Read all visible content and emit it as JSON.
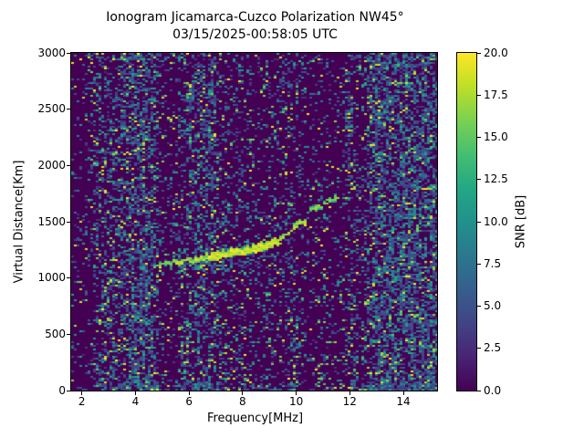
{
  "title": {
    "line1": "Ionogram Jicamarca-Cuzco Polarization NW45°",
    "line2": "03/15/2025-00:58:05 UTC"
  },
  "axes": {
    "xlabel": "Frequency[MHz]",
    "ylabel": "Virtual Distance[Km]",
    "xlim": [
      1.6,
      15.26
    ],
    "ylim": [
      0,
      3000
    ],
    "xticks": [
      "2",
      "4",
      "6",
      "8",
      "10",
      "12",
      "14"
    ],
    "yticks": [
      "0",
      "500",
      "1000",
      "1500",
      "2000",
      "2500",
      "3000"
    ]
  },
  "colorbar": {
    "label": "SNR [dB]",
    "vmin": 0,
    "vmax": 20,
    "ticks": [
      "0.0",
      "2.5",
      "5.0",
      "7.5",
      "10.0",
      "12.5",
      "15.0",
      "17.5",
      "20.0"
    ],
    "colormap": "viridis",
    "stops": [
      "#440154",
      "#482475",
      "#414487",
      "#355f8d",
      "#2a788e",
      "#21918c",
      "#22a884",
      "#44bf70",
      "#7ad151",
      "#bddf26",
      "#fde725"
    ]
  },
  "chart_data": {
    "type": "heatmap",
    "title": "Ionogram Jicamarca-Cuzco Polarization NW45° 03/15/2025-00:58:05 UTC",
    "xlabel": "Frequency[MHz]",
    "ylabel": "Virtual Distance[Km]",
    "value_label": "SNR [dB]",
    "x_range_mhz": [
      1.6,
      15.26
    ],
    "y_range_km": [
      0,
      3000
    ],
    "value_range_db": [
      0,
      20
    ],
    "background_value_db": 0,
    "grid": false,
    "legend": "colorbar-right",
    "echo_trace": {
      "description": "F-region echo trace rising toward critical frequency",
      "points_mhz_km": [
        [
          4.7,
          1115
        ],
        [
          5.5,
          1140
        ],
        [
          6.5,
          1175
        ],
        [
          7.5,
          1215
        ],
        [
          8.5,
          1265
        ],
        [
          9.0,
          1295
        ],
        [
          9.4,
          1340
        ],
        [
          9.8,
          1420
        ],
        [
          10.1,
          1475
        ],
        [
          10.4,
          1520
        ]
      ],
      "detached_segment_mhz_km": [
        [
          10.55,
          1600
        ],
        [
          10.9,
          1645
        ],
        [
          11.3,
          1695
        ],
        [
          11.6,
          1725
        ]
      ],
      "gap_mhz": [
        10.4,
        10.55
      ],
      "brightness_segments": [
        {
          "from": 4.7,
          "to": 5.4,
          "amp": 0.5
        },
        {
          "from": 5.4,
          "to": 6.8,
          "amp": 0.75
        },
        {
          "from": 6.8,
          "to": 9.3,
          "amp": 1.0
        },
        {
          "from": 9.3,
          "to": 10.4,
          "amp": 0.7
        },
        {
          "from": 10.55,
          "to": 11.6,
          "amp": 0.55
        }
      ],
      "peak_snr_db": 20
    },
    "noise_base": 0.1,
    "noise_bands": [
      {
        "center_mhz": 2.75,
        "width_mhz": 0.45,
        "strength": 0.3
      },
      {
        "center_mhz": 3.6,
        "width_mhz": 0.5,
        "strength": 0.48
      },
      {
        "center_mhz": 4.15,
        "width_mhz": 0.45,
        "strength": 0.52
      },
      {
        "center_mhz": 4.55,
        "width_mhz": 0.3,
        "strength": 0.4
      },
      {
        "center_mhz": 5.9,
        "width_mhz": 0.5,
        "strength": 0.32
      },
      {
        "center_mhz": 6.45,
        "width_mhz": 0.45,
        "strength": 0.45
      },
      {
        "center_mhz": 6.85,
        "width_mhz": 0.3,
        "strength": 0.35
      },
      {
        "center_mhz": 7.4,
        "width_mhz": 0.25,
        "strength": 0.18
      },
      {
        "center_mhz": 8.05,
        "width_mhz": 0.4,
        "strength": 0.22
      },
      {
        "center_mhz": 9.0,
        "width_mhz": 0.3,
        "strength": 0.18
      },
      {
        "center_mhz": 9.85,
        "width_mhz": 0.45,
        "strength": 0.24
      },
      {
        "center_mhz": 10.9,
        "width_mhz": 0.3,
        "strength": 0.12
      },
      {
        "center_mhz": 12.05,
        "width_mhz": 0.35,
        "strength": 0.3
      },
      {
        "center_mhz": 12.6,
        "width_mhz": 0.25,
        "strength": 0.2
      },
      {
        "center_mhz": 13.05,
        "width_mhz": 0.35,
        "strength": 0.78
      },
      {
        "center_mhz": 13.55,
        "width_mhz": 0.3,
        "strength": 0.55
      },
      {
        "center_mhz": 14.1,
        "width_mhz": 0.4,
        "strength": 0.8
      },
      {
        "center_mhz": 14.65,
        "width_mhz": 0.3,
        "strength": 0.55
      },
      {
        "center_mhz": 15.1,
        "width_mhz": 0.3,
        "strength": 0.72
      }
    ],
    "row_boosts": {
      "bottom_rows_km": 60,
      "bottom_boost": 1.8,
      "top_rows_km": 70,
      "top_boost": 1.4,
      "trace_band_km": [
        1040,
        1260
      ],
      "trace_band_mhz": [
        4.3,
        9.6
      ],
      "trace_band_boost": 1.5
    },
    "seed": 20250315
  }
}
